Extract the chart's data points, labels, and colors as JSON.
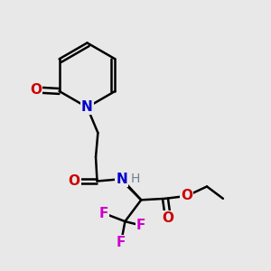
{
  "background_color": "#e8e8e8",
  "bond_color": "#000000",
  "bond_width": 1.8,
  "figsize": [
    3.0,
    3.0
  ],
  "dpi": 100,
  "colors": {
    "N": "#0000cc",
    "O": "#cc0000",
    "F": "#cc00cc",
    "H": "#708090",
    "C": "#000000"
  }
}
